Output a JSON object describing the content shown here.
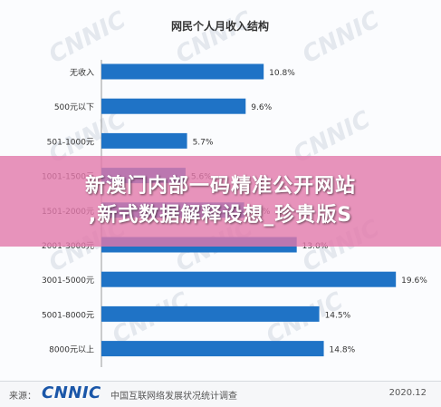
{
  "chart_data": {
    "type": "bar",
    "orientation": "horizontal",
    "title": "网民个人月收入结构",
    "categories": [
      "无收入",
      "500元以下",
      "501-1000元",
      "1001-1500元",
      "1501-2000元",
      "2001-3000元",
      "3001-5000元",
      "5001-8000元",
      "8000元以上"
    ],
    "values": [
      10.8,
      9.6,
      5.7,
      5.6,
      9.5,
      13.0,
      19.6,
      14.5,
      14.8
    ],
    "value_labels": [
      "10.8%",
      "9.6%",
      "5.7%",
      "5.6%",
      "9.5%",
      "13.0%",
      "19.6%",
      "14.5%",
      "14.8%"
    ],
    "xlim": [
      0,
      22
    ],
    "grid": false,
    "bar_color": "#1f73c6"
  },
  "watermark": {
    "text": "CNNIC"
  },
  "banner": {
    "line1": "新澳门内部一码精准公开网站",
    "line2": ",新式数据解释设想_珍贵版S"
  },
  "footer": {
    "source_label": "来源：",
    "logo_text": "CNNIC",
    "org_name": "中国互联网络发展状况统计调查",
    "date": "2020.12"
  }
}
